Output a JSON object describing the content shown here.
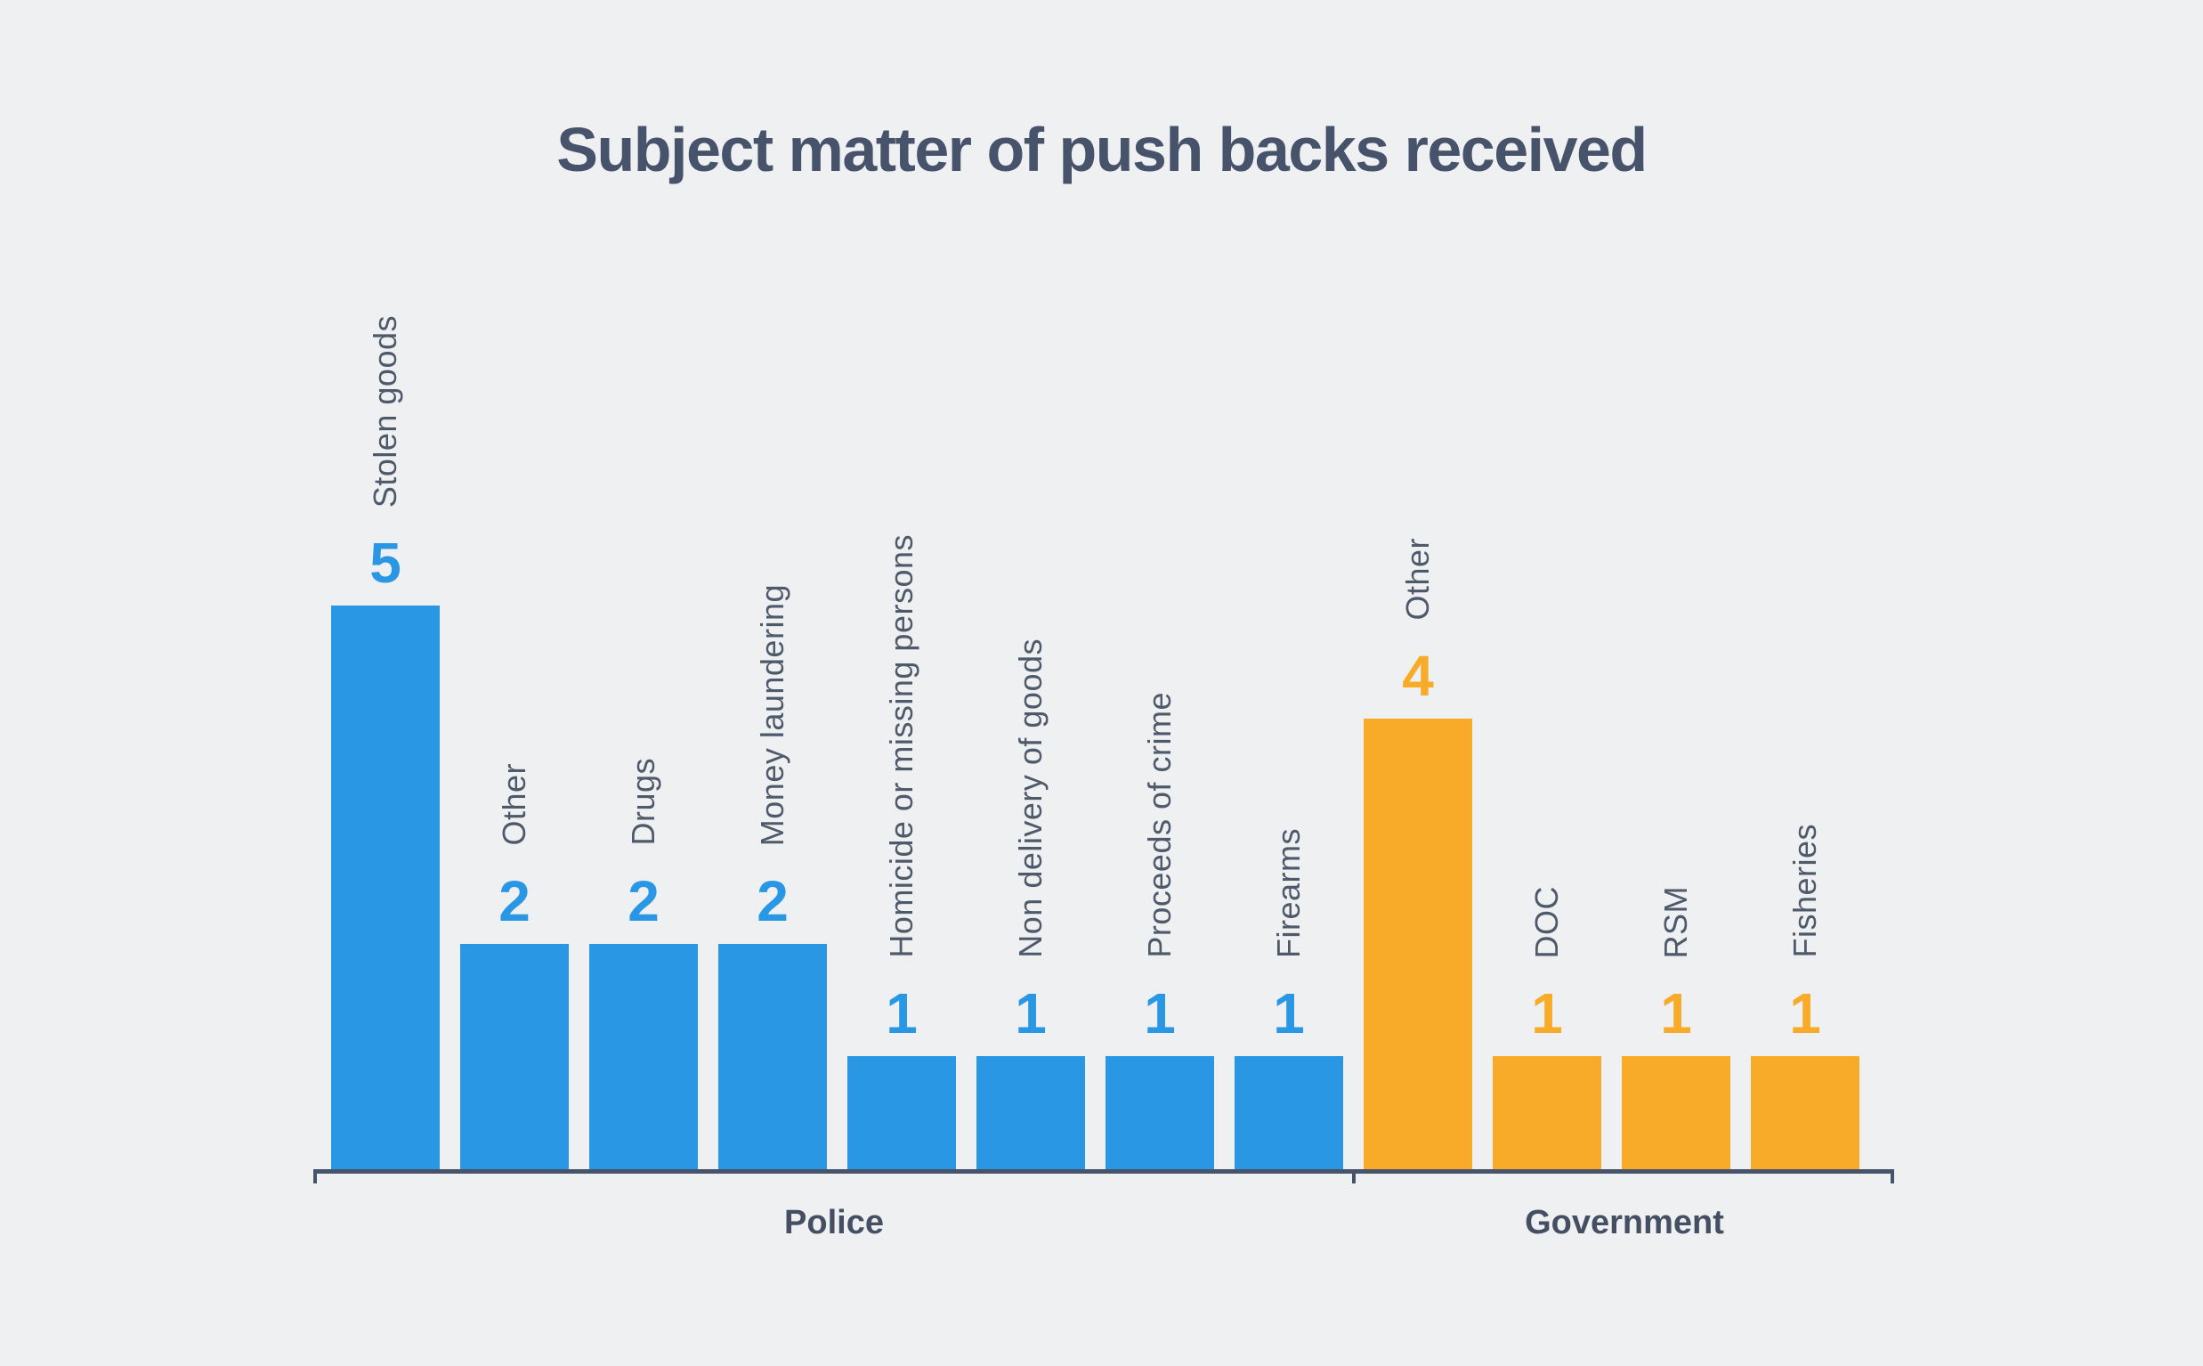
{
  "title": "Subject matter of push backs received",
  "colors": {
    "background": "#eff0f2",
    "police_series": "#2997e4",
    "government_series": "#f7ab28",
    "title_text": "#47536b",
    "axis": "#47536b",
    "category_label_text": "#4e5a6a",
    "group_label_text": "#454f63"
  },
  "chart_data": {
    "type": "bar",
    "title": "Subject matter of push backs received",
    "xlabel": "",
    "ylabel": "",
    "ylim": [
      0,
      5
    ],
    "grid": false,
    "legend": "none",
    "value_labels": true,
    "category_label_rotation": -90,
    "groups": [
      {
        "label": "Police",
        "color": "#2997e4",
        "bars": [
          {
            "label": "Stolen goods",
            "value": 5
          },
          {
            "label": "Other",
            "value": 2
          },
          {
            "label": "Drugs",
            "value": 2
          },
          {
            "label": "Money laundering",
            "value": 2
          },
          {
            "label": "Homicide or missing persons",
            "value": 1
          },
          {
            "label": "Non delivery of goods",
            "value": 1
          },
          {
            "label": "Proceeds of crime",
            "value": 1
          },
          {
            "label": "Firearms",
            "value": 1
          }
        ]
      },
      {
        "label": "Government",
        "color": "#f7ab28",
        "bars": [
          {
            "label": "Other",
            "value": 4
          },
          {
            "label": "DOC",
            "value": 1
          },
          {
            "label": "RSM",
            "value": 1
          },
          {
            "label": "Fisheries",
            "value": 1
          }
        ]
      }
    ]
  }
}
